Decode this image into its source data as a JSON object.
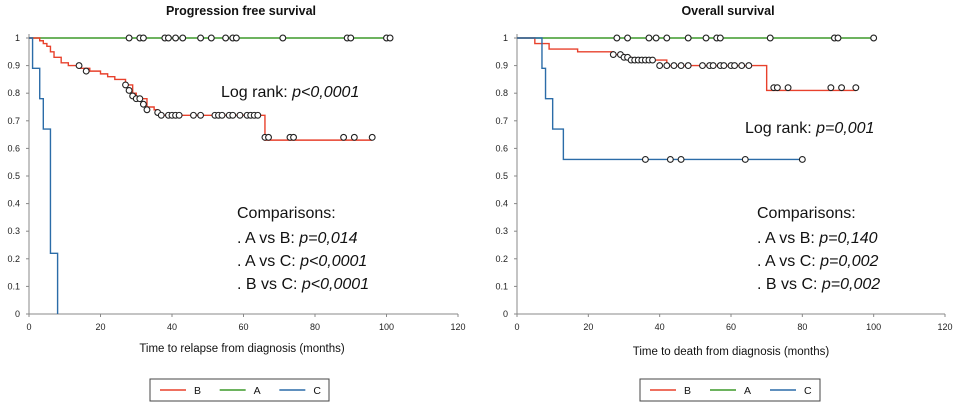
{
  "colors": {
    "B": "#e8412c",
    "A": "#3d9a2a",
    "C": "#2b6ca8"
  },
  "chart_data": [
    {
      "type": "line",
      "subtype": "kaplan-meier",
      "title": "Progression free survival",
      "xlabel": "Time to relapse from diagnosis (months)",
      "ylabel": "",
      "xlim": [
        0,
        120
      ],
      "ylim": [
        0,
        1
      ],
      "xticks": [
        "0",
        "20",
        "40",
        "60",
        "80",
        "100",
        "120"
      ],
      "yticks": [
        "0",
        "0.1",
        "0.2",
        "0.3",
        "0.4",
        "0.5",
        "0.6",
        "0.7",
        "0.8",
        "0.9",
        "1"
      ],
      "grid": false,
      "logrank": {
        "label": "Log rank: ",
        "value": "p<0,0001"
      },
      "comparisons_title": "Comparisons:",
      "comparisons": [
        {
          "label": ". A vs B: ",
          "value": "p=0,014"
        },
        {
          "label": ". A vs C: ",
          "value": "p<0,0001"
        },
        {
          "label": ". B vs C: ",
          "value": "p<0,0001"
        }
      ],
      "series": [
        {
          "name": "B",
          "steps": [
            [
              0,
              1
            ],
            [
              3,
              0.99
            ],
            [
              4,
              0.98
            ],
            [
              5,
              0.97
            ],
            [
              6,
              0.95
            ],
            [
              7,
              0.93
            ],
            [
              9,
              0.91
            ],
            [
              11,
              0.9
            ],
            [
              14,
              0.89
            ],
            [
              17,
              0.88
            ],
            [
              20,
              0.87
            ],
            [
              22,
              0.86
            ],
            [
              24,
              0.85
            ],
            [
              27,
              0.83
            ],
            [
              29,
              0.8
            ],
            [
              30,
              0.78
            ],
            [
              33,
              0.75
            ],
            [
              35,
              0.74
            ],
            [
              36,
              0.73
            ],
            [
              37,
              0.72
            ],
            [
              66,
              0.63
            ],
            [
              96,
              0.63
            ]
          ],
          "censored": [
            [
              14,
              0.9
            ],
            [
              16,
              0.88
            ],
            [
              27,
              0.83
            ],
            [
              28,
              0.81
            ],
            [
              29,
              0.79
            ],
            [
              30,
              0.78
            ],
            [
              31,
              0.78
            ],
            [
              32,
              0.76
            ],
            [
              33,
              0.74
            ],
            [
              36,
              0.73
            ],
            [
              37,
              0.72
            ],
            [
              39,
              0.72
            ],
            [
              40,
              0.72
            ],
            [
              41,
              0.72
            ],
            [
              42,
              0.72
            ],
            [
              46,
              0.72
            ],
            [
              48,
              0.72
            ],
            [
              52,
              0.72
            ],
            [
              53,
              0.72
            ],
            [
              54,
              0.72
            ],
            [
              56,
              0.72
            ],
            [
              57,
              0.72
            ],
            [
              59,
              0.72
            ],
            [
              61,
              0.72
            ],
            [
              62,
              0.72
            ],
            [
              63,
              0.72
            ],
            [
              64,
              0.72
            ],
            [
              66,
              0.64
            ],
            [
              67,
              0.64
            ],
            [
              73,
              0.64
            ],
            [
              74,
              0.64
            ],
            [
              88,
              0.64
            ],
            [
              91,
              0.64
            ],
            [
              96,
              0.64
            ]
          ]
        },
        {
          "name": "A",
          "steps": [
            [
              0,
              1
            ],
            [
              101,
              1
            ]
          ],
          "censored": [
            [
              28,
              1
            ],
            [
              31,
              1
            ],
            [
              32,
              1
            ],
            [
              38,
              1
            ],
            [
              39,
              1
            ],
            [
              41,
              1
            ],
            [
              43,
              1
            ],
            [
              48,
              1
            ],
            [
              51,
              1
            ],
            [
              55,
              1
            ],
            [
              57,
              1
            ],
            [
              58,
              1
            ],
            [
              71,
              1
            ],
            [
              89,
              1
            ],
            [
              90,
              1
            ],
            [
              100,
              1
            ],
            [
              101,
              1
            ]
          ]
        },
        {
          "name": "C",
          "steps": [
            [
              0,
              1
            ],
            [
              1,
              0.89
            ],
            [
              3,
              0.78
            ],
            [
              4,
              0.67
            ],
            [
              6,
              0.22
            ],
            [
              8,
              0
            ],
            [
              8,
              0
            ]
          ],
          "censored": []
        }
      ]
    },
    {
      "type": "line",
      "subtype": "kaplan-meier",
      "title": "Overall survival",
      "xlabel": "Time to death from diagnosis (months)",
      "ylabel": "",
      "xlim": [
        0,
        120
      ],
      "ylim": [
        0,
        1
      ],
      "xticks": [
        "0",
        "20",
        "40",
        "60",
        "80",
        "100",
        "120"
      ],
      "yticks": [
        "0",
        "0.1",
        "0.2",
        "0.3",
        "0.4",
        "0.5",
        "0.6",
        "0.7",
        "0.8",
        "0.9",
        "1"
      ],
      "grid": false,
      "logrank": {
        "label": "Log rank: ",
        "value": "p=0,001"
      },
      "comparisons_title": "Comparisons:",
      "comparisons": [
        {
          "label": ". A vs B: ",
          "value": "p=0,140"
        },
        {
          "label": ". A vs C: ",
          "value": "p=0,002"
        },
        {
          "label": ". B vs C: ",
          "value": "p=0,002"
        }
      ],
      "series": [
        {
          "name": "B",
          "steps": [
            [
              0,
              1
            ],
            [
              5,
              0.98
            ],
            [
              9,
              0.96
            ],
            [
              17,
              0.95
            ],
            [
              27,
              0.94
            ],
            [
              30,
              0.93
            ],
            [
              32,
              0.92
            ],
            [
              42,
              0.9
            ],
            [
              63,
              0.9
            ],
            [
              70,
              0.81
            ],
            [
              95,
              0.81
            ]
          ],
          "censored": [
            [
              27,
              0.94
            ],
            [
              29,
              0.94
            ],
            [
              30,
              0.93
            ],
            [
              31,
              0.93
            ],
            [
              32,
              0.92
            ],
            [
              33,
              0.92
            ],
            [
              34,
              0.92
            ],
            [
              35,
              0.92
            ],
            [
              36,
              0.92
            ],
            [
              37,
              0.92
            ],
            [
              38,
              0.92
            ],
            [
              40,
              0.9
            ],
            [
              42,
              0.9
            ],
            [
              44,
              0.9
            ],
            [
              46,
              0.9
            ],
            [
              48,
              0.9
            ],
            [
              52,
              0.9
            ],
            [
              54,
              0.9
            ],
            [
              55,
              0.9
            ],
            [
              57,
              0.9
            ],
            [
              58,
              0.9
            ],
            [
              60,
              0.9
            ],
            [
              61,
              0.9
            ],
            [
              63,
              0.9
            ],
            [
              65,
              0.9
            ],
            [
              72,
              0.82
            ],
            [
              73,
              0.82
            ],
            [
              76,
              0.82
            ],
            [
              88,
              0.82
            ],
            [
              91,
              0.82
            ],
            [
              95,
              0.82
            ]
          ]
        },
        {
          "name": "A",
          "steps": [
            [
              0,
              1
            ],
            [
              100,
              1
            ]
          ],
          "censored": [
            [
              28,
              1
            ],
            [
              31,
              1
            ],
            [
              37,
              1
            ],
            [
              39,
              1
            ],
            [
              42,
              1
            ],
            [
              48,
              1
            ],
            [
              53,
              1
            ],
            [
              56,
              1
            ],
            [
              57,
              1
            ],
            [
              71,
              1
            ],
            [
              89,
              1
            ],
            [
              90,
              1
            ],
            [
              100,
              1
            ]
          ]
        },
        {
          "name": "C",
          "steps": [
            [
              0,
              1
            ],
            [
              7,
              0.89
            ],
            [
              8,
              0.78
            ],
            [
              10,
              0.67
            ],
            [
              13,
              0.56
            ],
            [
              80,
              0.56
            ]
          ],
          "censored": [
            [
              36,
              0.56
            ],
            [
              43,
              0.56
            ],
            [
              46,
              0.56
            ],
            [
              64,
              0.56
            ],
            [
              80,
              0.56
            ]
          ]
        }
      ]
    }
  ],
  "legend": [
    "B",
    "A",
    "C"
  ]
}
